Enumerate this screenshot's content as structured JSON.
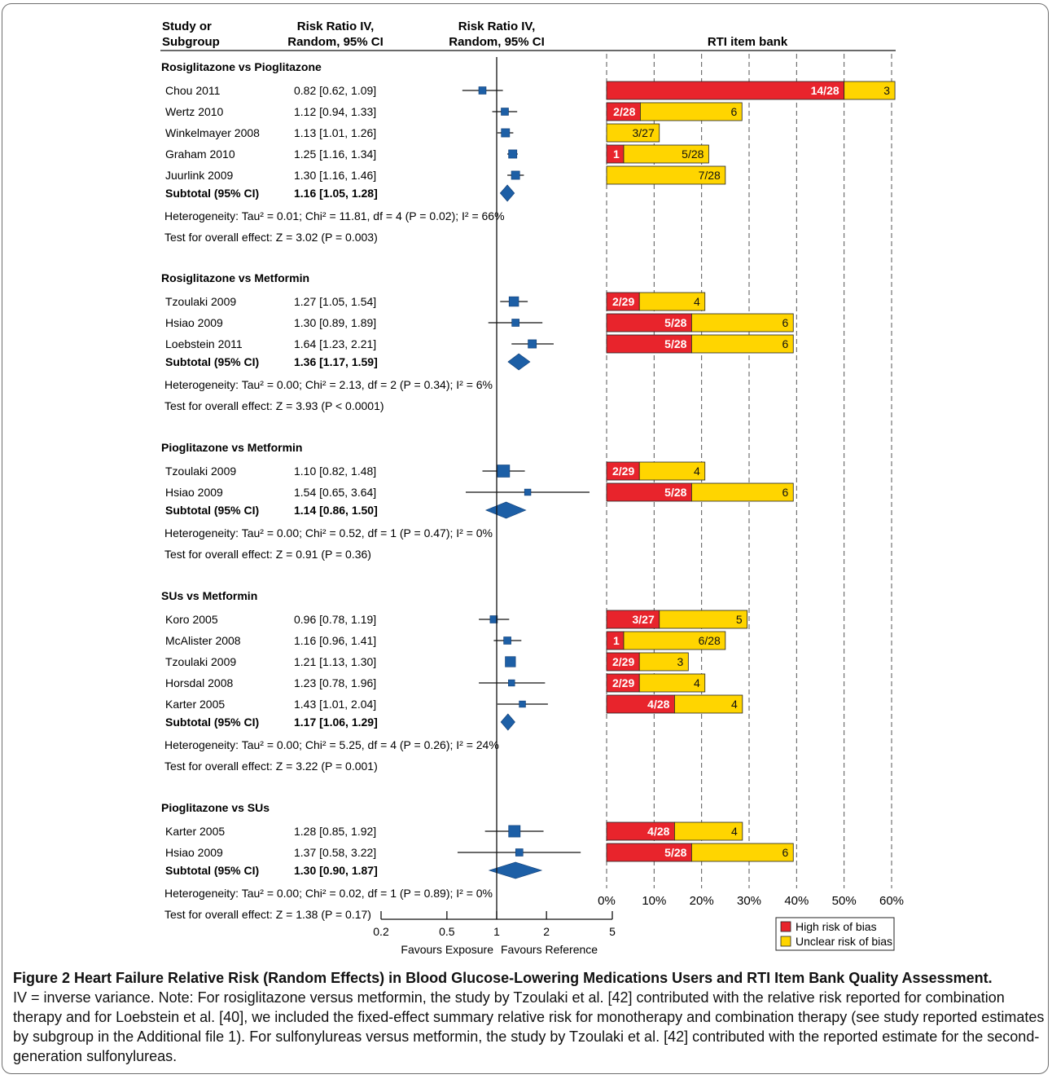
{
  "header": {
    "study_col_line1": "Study or",
    "study_col_line2": "Subgroup",
    "rr_col_line1": "Risk Ratio IV,",
    "rr_col_line2": "Random, 95% CI",
    "plot_col_line1": "Risk Ratio IV,",
    "plot_col_line2": "Random, 95% CI",
    "rti_title": "RTI item bank"
  },
  "chart_data": {
    "type": "forest",
    "groups": [
      {
        "title": "Rosiglitazone vs Pioglitazone",
        "studies": [
          {
            "name": "Chou 2011",
            "rr_text": "0.82 [0.62, 1.09]",
            "rr": 0.82,
            "lo": 0.62,
            "hi": 1.09,
            "weight": 1
          },
          {
            "name": "Wertz 2010",
            "rr_text": "1.12 [0.94, 1.33]",
            "rr": 1.12,
            "lo": 0.94,
            "hi": 1.33,
            "weight": 1
          },
          {
            "name": "Winkelmayer 2008",
            "rr_text": "1.13 [1.01, 1.26]",
            "rr": 1.13,
            "lo": 1.01,
            "hi": 1.26,
            "weight": 1.3
          },
          {
            "name": "Graham 2010",
            "rr_text": "1.25 [1.16, 1.34]",
            "rr": 1.25,
            "lo": 1.16,
            "hi": 1.34,
            "weight": 1.3
          },
          {
            "name": "Juurlink 2009",
            "rr_text": "1.30 [1.16, 1.46]",
            "rr": 1.3,
            "lo": 1.16,
            "hi": 1.46,
            "weight": 1.3
          }
        ],
        "subtotal_label": "Subtotal (95% CI)",
        "subtotal_text": "1.16 [1.05, 1.28]",
        "subtotal": {
          "rr": 1.16,
          "lo": 1.05,
          "hi": 1.28
        },
        "heterogeneity": "Heterogeneity: Tau² = 0.01; Chi² = 11.81, df = 4 (P = 0.02); I² = 66%",
        "overall": "Test for overall effect: Z = 3.02 (P = 0.003)"
      },
      {
        "title": "Rosiglitazone vs Metformin",
        "studies": [
          {
            "name": "Tzoulaki 2009",
            "rr_text": "1.27 [1.05, 1.54]",
            "rr": 1.27,
            "lo": 1.05,
            "hi": 1.54,
            "weight": 1.7
          },
          {
            "name": "Hsiao 2009",
            "rr_text": "1.30 [0.89, 1.89]",
            "rr": 1.3,
            "lo": 0.89,
            "hi": 1.89,
            "weight": 1
          },
          {
            "name": "Loebstein 2011",
            "rr_text": "1.64 [1.23, 2.21]",
            "rr": 1.64,
            "lo": 1.23,
            "hi": 2.21,
            "weight": 1.3
          }
        ],
        "subtotal_label": "Subtotal (95% CI)",
        "subtotal_text": "1.36 [1.17, 1.59]",
        "subtotal": {
          "rr": 1.36,
          "lo": 1.17,
          "hi": 1.59
        },
        "heterogeneity": "Heterogeneity: Tau² = 0.00; Chi² = 2.13, df = 2 (P = 0.34); I² = 6%",
        "overall": "Test for overall effect: Z = 3.93 (P < 0.0001)"
      },
      {
        "title": "Pioglitazone vs Metformin",
        "studies": [
          {
            "name": "Tzoulaki 2009",
            "rr_text": "1.10 [0.82, 1.48]",
            "rr": 1.1,
            "lo": 0.82,
            "hi": 1.48,
            "weight": 2.5
          },
          {
            "name": "Hsiao 2009",
            "rr_text": "1.54 [0.65, 3.64]",
            "rr": 1.54,
            "lo": 0.65,
            "hi": 3.64,
            "weight": 0.7
          }
        ],
        "subtotal_label": "Subtotal (95% CI)",
        "subtotal_text": "1.14 [0.86, 1.50]",
        "subtotal": {
          "rr": 1.14,
          "lo": 0.86,
          "hi": 1.5
        },
        "heterogeneity": "Heterogeneity: Tau² = 0.00; Chi² = 0.52, df = 1 (P = 0.47); I² = 0%",
        "overall": "Test for overall effect: Z = 0.91 (P = 0.36)"
      },
      {
        "title": "SUs vs Metformin",
        "studies": [
          {
            "name": "Koro 2005",
            "rr_text": "0.96 [0.78, 1.19]",
            "rr": 0.96,
            "lo": 0.78,
            "hi": 1.19,
            "weight": 1
          },
          {
            "name": "McAlister 2008",
            "rr_text": "1.16 [0.96, 1.41]",
            "rr": 1.16,
            "lo": 0.96,
            "hi": 1.41,
            "weight": 1
          },
          {
            "name": "Tzoulaki 2009",
            "rr_text": "1.21 [1.13, 1.30]",
            "rr": 1.21,
            "lo": 1.13,
            "hi": 1.3,
            "weight": 1.9
          },
          {
            "name": "Horsdal 2008",
            "rr_text": "1.23 [0.78, 1.96]",
            "rr": 1.23,
            "lo": 0.78,
            "hi": 1.96,
            "weight": 0.7
          },
          {
            "name": "Karter 2005",
            "rr_text": "1.43 [1.01, 2.04]",
            "rr": 1.43,
            "lo": 1.01,
            "hi": 2.04,
            "weight": 0.7
          }
        ],
        "subtotal_label": "Subtotal (95% CI)",
        "subtotal_text": "1.17 [1.06, 1.29]",
        "subtotal": {
          "rr": 1.17,
          "lo": 1.06,
          "hi": 1.29
        },
        "heterogeneity": "Heterogeneity: Tau² = 0.00; Chi² = 5.25, df = 4 (P = 0.26); I² = 24%",
        "overall": "Test for overall effect: Z = 3.22 (P = 0.001)"
      },
      {
        "title": "Pioglitazone vs SUs",
        "studies": [
          {
            "name": "Karter 2005",
            "rr_text": "1.28 [0.85, 1.92]",
            "rr": 1.28,
            "lo": 0.85,
            "hi": 1.92,
            "weight": 2.3
          },
          {
            "name": "Hsiao 2009",
            "rr_text": "1.37 [0.58, 3.22]",
            "rr": 1.37,
            "lo": 0.58,
            "hi": 3.22,
            "weight": 1
          }
        ],
        "subtotal_label": "Subtotal (95% CI)",
        "subtotal_text": "1.30 [0.90, 1.87]",
        "subtotal": {
          "rr": 1.3,
          "lo": 0.9,
          "hi": 1.87
        },
        "heterogeneity": "Heterogeneity: Tau² = 0.00; Chi² = 0.02, df = 1 (P = 0.89); I² = 0%",
        "overall": "Test for overall effect: Z = 1.38 (P = 0.17)"
      }
    ],
    "forest_axis": {
      "scale": "log",
      "ticks": [
        0.2,
        0.5,
        1,
        2,
        5
      ],
      "tick_labels": [
        "0.2",
        "0.5",
        "1",
        "2",
        "5"
      ],
      "label_left": "Favours Exposure",
      "label_right": "Favours Reference"
    },
    "rti_bars": {
      "xlim": [
        0,
        60
      ],
      "ticks": [
        0,
        10,
        20,
        30,
        40,
        50,
        60
      ],
      "tick_labels": [
        "0%",
        "10%",
        "20%",
        "30%",
        "40%",
        "50%",
        "60%"
      ],
      "rows": [
        [
          {
            "high": 50.0,
            "high_label": "14/28",
            "unclear": 10.7,
            "unclear_label": "3"
          },
          {
            "high": 7.1,
            "high_label": "2/28",
            "unclear": 21.4,
            "unclear_label": "6"
          },
          {
            "high": 0,
            "high_label": "",
            "unclear": 11.1,
            "unclear_label": "3/27"
          },
          {
            "high": 3.6,
            "high_label": "1",
            "unclear": 17.9,
            "unclear_label": "5/28"
          },
          {
            "high": 0,
            "high_label": "",
            "unclear": 25.0,
            "unclear_label": "7/28"
          }
        ],
        [
          {
            "high": 6.9,
            "high_label": "2/29",
            "unclear": 13.8,
            "unclear_label": "4"
          },
          {
            "high": 17.9,
            "high_label": "5/28",
            "unclear": 21.4,
            "unclear_label": "6"
          },
          {
            "high": 17.9,
            "high_label": "5/28",
            "unclear": 21.4,
            "unclear_label": "6"
          }
        ],
        [
          {
            "high": 6.9,
            "high_label": "2/29",
            "unclear": 13.8,
            "unclear_label": "4"
          },
          {
            "high": 17.9,
            "high_label": "5/28",
            "unclear": 21.4,
            "unclear_label": "6"
          }
        ],
        [
          {
            "high": 11.1,
            "high_label": "3/27",
            "unclear": 18.5,
            "unclear_label": "5"
          },
          {
            "high": 3.6,
            "high_label": "1",
            "unclear": 21.4,
            "unclear_label": "6/28"
          },
          {
            "high": 6.9,
            "high_label": "2/29",
            "unclear": 10.3,
            "unclear_label": "3"
          },
          {
            "high": 6.9,
            "high_label": "2/29",
            "unclear": 13.8,
            "unclear_label": "4"
          },
          {
            "high": 14.3,
            "high_label": "4/28",
            "unclear": 14.3,
            "unclear_label": "4"
          }
        ],
        [
          {
            "high": 14.3,
            "high_label": "4/28",
            "unclear": 14.3,
            "unclear_label": "4"
          },
          {
            "high": 17.9,
            "high_label": "5/28",
            "unclear": 21.4,
            "unclear_label": "6"
          }
        ]
      ]
    },
    "legend": [
      {
        "label": "High risk of bias",
        "color": "#e8242c"
      },
      {
        "label": "Unclear risk of bias",
        "color": "#ffd500"
      }
    ]
  },
  "colors": {
    "marker": "#1d5fa6",
    "high": "#e8242c",
    "unclear": "#ffd500",
    "grid": "#555555"
  },
  "caption": {
    "title": "Figure 2 Heart Failure Relative Risk (Random Effects) in Blood Glucose-Lowering Medications Users and RTI Item Bank Quality Assessment.",
    "body": "IV = inverse variance. Note: For rosiglitazone versus metformin, the study by Tzoulaki et al. [42] contributed with the relative risk reported for combination therapy and for Loebstein et al. [40], we included the fixed-effect summary relative risk for monotherapy and combination therapy (see study reported estimates by subgroup in the Additional file 1). For sulfonylureas versus metformin, the study by Tzoulaki et al. [42] contributed with the reported estimate for the second-generation sulfonylureas."
  }
}
